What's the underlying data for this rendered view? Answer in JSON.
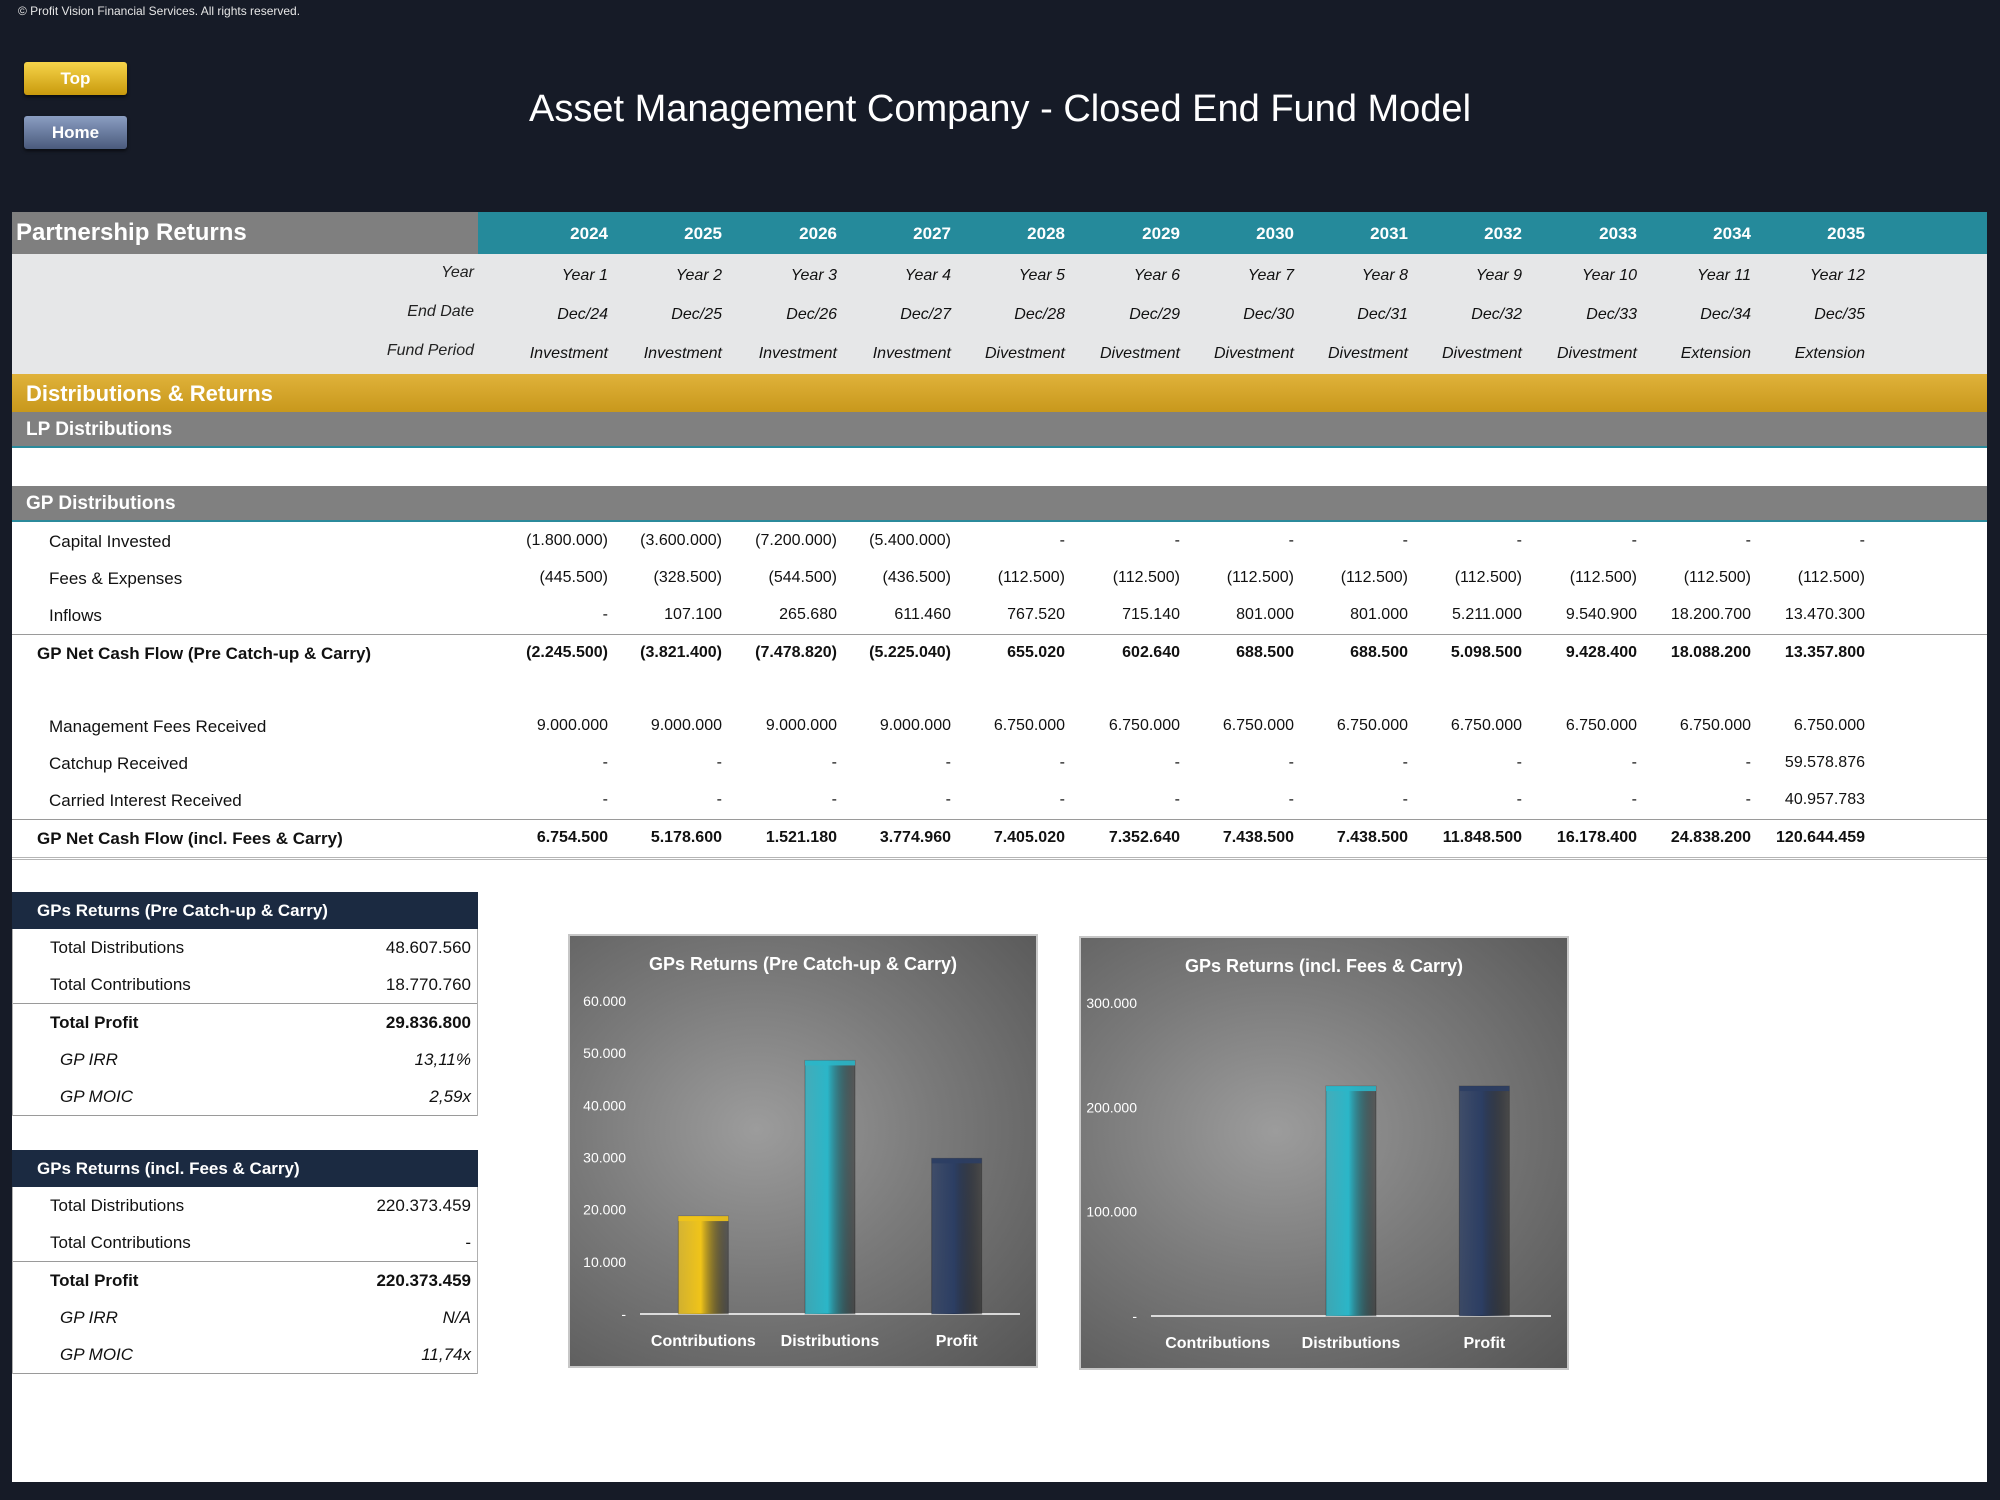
{
  "copyright": "© Profit Vision Financial Services. All rights reserved.",
  "nav": {
    "top_label": "Top",
    "home_label": "Home"
  },
  "title": "Asset Management Company - Closed End Fund Model",
  "section_title": "Partnership Returns",
  "years": [
    "2024",
    "2025",
    "2026",
    "2027",
    "2028",
    "2029",
    "2030",
    "2031",
    "2032",
    "2033",
    "2034",
    "2035"
  ],
  "info_rows": [
    {
      "label": "Year",
      "values": [
        "Year 1",
        "Year 2",
        "Year 3",
        "Year 4",
        "Year 5",
        "Year 6",
        "Year 7",
        "Year 8",
        "Year 9",
        "Year 10",
        "Year 11",
        "Year 12"
      ]
    },
    {
      "label": "End Date",
      "values": [
        "Dec/24",
        "Dec/25",
        "Dec/26",
        "Dec/27",
        "Dec/28",
        "Dec/29",
        "Dec/30",
        "Dec/31",
        "Dec/32",
        "Dec/33",
        "Dec/34",
        "Dec/35"
      ]
    },
    {
      "label": "Fund Period",
      "values": [
        "Investment",
        "Investment",
        "Investment",
        "Investment",
        "Divestment",
        "Divestment",
        "Divestment",
        "Divestment",
        "Divestment",
        "Divestment",
        "Extension",
        "Extension"
      ]
    }
  ],
  "bands": {
    "distributions": "Distributions & Returns",
    "lp": "LP Distributions",
    "gp": "GP Distributions"
  },
  "gp_rows": [
    {
      "label": "Capital Invested",
      "bold": false,
      "values": [
        "(1.800.000)",
        "(3.600.000)",
        "(7.200.000)",
        "(5.400.000)",
        "-",
        "-",
        "-",
        "-",
        "-",
        "-",
        "-",
        "-"
      ]
    },
    {
      "label": "Fees & Expenses",
      "bold": false,
      "values": [
        "(445.500)",
        "(328.500)",
        "(544.500)",
        "(436.500)",
        "(112.500)",
        "(112.500)",
        "(112.500)",
        "(112.500)",
        "(112.500)",
        "(112.500)",
        "(112.500)",
        "(112.500)"
      ]
    },
    {
      "label": "Inflows",
      "bold": false,
      "values": [
        "-",
        "107.100",
        "265.680",
        "611.460",
        "767.520",
        "715.140",
        "801.000",
        "801.000",
        "5.211.000",
        "9.540.900",
        "18.200.700",
        "13.470.300"
      ]
    },
    {
      "label": "GP Net Cash Flow (Pre Catch-up & Carry)",
      "bold": true,
      "values": [
        "(2.245.500)",
        "(3.821.400)",
        "(7.478.820)",
        "(5.225.040)",
        "655.020",
        "602.640",
        "688.500",
        "688.500",
        "5.098.500",
        "9.428.400",
        "18.088.200",
        "13.357.800"
      ]
    },
    {
      "label": "Management Fees Received",
      "bold": false,
      "values": [
        "9.000.000",
        "9.000.000",
        "9.000.000",
        "9.000.000",
        "6.750.000",
        "6.750.000",
        "6.750.000",
        "6.750.000",
        "6.750.000",
        "6.750.000",
        "6.750.000",
        "6.750.000"
      ]
    },
    {
      "label": "Catchup Received",
      "bold": false,
      "values": [
        "-",
        "-",
        "-",
        "-",
        "-",
        "-",
        "-",
        "-",
        "-",
        "-",
        "-",
        "59.578.876"
      ]
    },
    {
      "label": "Carried Interest Received",
      "bold": false,
      "values": [
        "-",
        "-",
        "-",
        "-",
        "-",
        "-",
        "-",
        "-",
        "-",
        "-",
        "-",
        "40.957.783"
      ]
    },
    {
      "label": "GP Net Cash Flow (incl. Fees & Carry)",
      "bold": true,
      "values": [
        "6.754.500",
        "5.178.600",
        "1.521.180",
        "3.774.960",
        "7.405.020",
        "7.352.640",
        "7.438.500",
        "7.438.500",
        "11.848.500",
        "16.178.400",
        "24.838.200",
        "120.644.459"
      ]
    }
  ],
  "summary_pre": {
    "title": "GPs Returns (Pre Catch-up & Carry)",
    "rows": [
      {
        "label": "Total Distributions",
        "value": "48.607.560"
      },
      {
        "label": "Total Contributions",
        "value": "18.770.760"
      },
      {
        "label": "Total Profit",
        "value": "29.836.800"
      },
      {
        "label": "GP IRR",
        "value": "13,11%"
      },
      {
        "label": "GP MOIC",
        "value": "2,59x"
      }
    ]
  },
  "summary_incl": {
    "title": "GPs Returns (incl. Fees & Carry)",
    "rows": [
      {
        "label": "Total Distributions",
        "value": "220.373.459"
      },
      {
        "label": "Total Contributions",
        "value": "-"
      },
      {
        "label": "Total Profit",
        "value": "220.373.459"
      },
      {
        "label": "GP IRR",
        "value": "N/A"
      },
      {
        "label": "GP MOIC",
        "value": "11,74x"
      }
    ]
  },
  "chart_data": [
    {
      "type": "bar",
      "title": "GPs Returns (Pre Catch-up & Carry)",
      "categories": [
        "Contributions",
        "Distributions",
        "Profit"
      ],
      "values": [
        18770.76,
        48607.56,
        29836.8
      ],
      "ylim": [
        0,
        60000
      ],
      "yticks": [
        "-",
        "10.000",
        "20.000",
        "30.000",
        "40.000",
        "50.000",
        "60.000"
      ],
      "colors": [
        "#f0c419",
        "#2bb6c8",
        "#2c3e63"
      ],
      "grid": false,
      "legend": "none"
    },
    {
      "type": "bar",
      "title": "GPs Returns (incl. Fees & Carry)",
      "categories": [
        "Contributions",
        "Distributions",
        "Profit"
      ],
      "values": [
        0,
        220373.459,
        220373.459
      ],
      "ylim": [
        0,
        300000
      ],
      "yticks": [
        "-",
        "100.000",
        "200.000",
        "300.000"
      ],
      "colors": [
        "#f0c419",
        "#2bb6c8",
        "#2c3e63"
      ],
      "grid": false,
      "legend": "none"
    }
  ]
}
